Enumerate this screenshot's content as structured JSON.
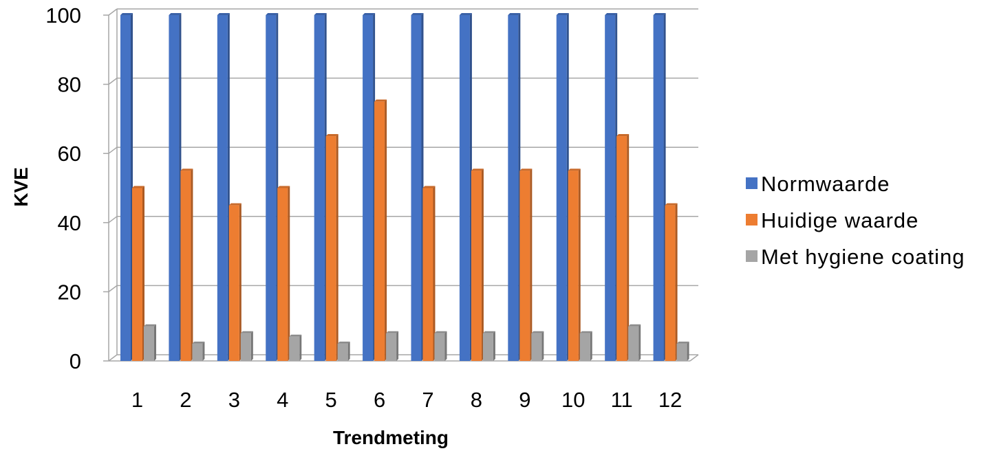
{
  "chart_data": {
    "type": "bar",
    "title": "",
    "xlabel": "Trendmeting",
    "ylabel": "KVE",
    "ylim": [
      0,
      100
    ],
    "yticks": [
      "0",
      "20",
      "40",
      "60",
      "80",
      "100"
    ],
    "categories": [
      "1",
      "2",
      "3",
      "4",
      "5",
      "6",
      "7",
      "8",
      "9",
      "10",
      "11",
      "12"
    ],
    "grid": true,
    "legend_position": "right",
    "series": [
      {
        "name": "Normwaarde",
        "color": "#4472C4",
        "values": [
          100,
          100,
          100,
          100,
          100,
          100,
          100,
          100,
          100,
          100,
          100,
          100
        ]
      },
      {
        "name": "Huidige waarde",
        "color": "#ED7D31",
        "values": [
          50,
          55,
          45,
          50,
          65,
          75,
          50,
          55,
          55,
          55,
          65,
          45
        ]
      },
      {
        "name": "Met hygiene coating",
        "color": "#A5A5A5",
        "values": [
          10,
          5,
          8,
          7,
          5,
          8,
          8,
          8,
          8,
          8,
          10,
          5
        ]
      }
    ]
  }
}
